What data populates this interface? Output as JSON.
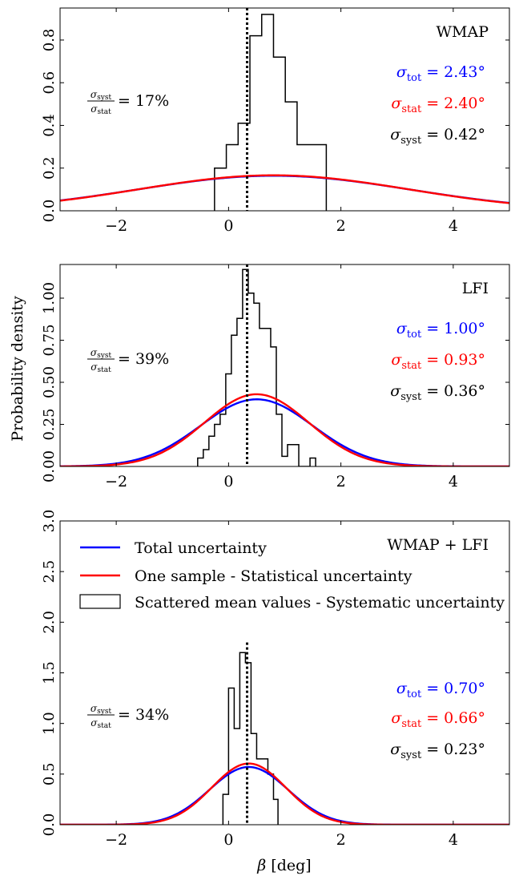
{
  "figure": {
    "ylabel": "Probability density",
    "xlabel": "β [deg]",
    "vline_beta": 0.33
  },
  "legend": {
    "total": "Total uncertainty",
    "stat": "One sample - Statistical uncertainty",
    "syst": "Scattered mean values - Systematic uncertainty"
  },
  "colors": {
    "total": "#0000ff",
    "stat": "#ff0000",
    "syst": "#000000"
  },
  "chart_data": [
    {
      "type": "area",
      "title": "WMAP",
      "xlim": [
        -3,
        5
      ],
      "ylim": [
        0,
        0.95
      ],
      "xticks": [
        -2,
        0,
        2,
        4
      ],
      "xtick_labels": [
        "−2",
        "0",
        "2",
        "4"
      ],
      "yticks": [
        0,
        0.2,
        0.4,
        0.6,
        0.8
      ],
      "ytick_labels": [
        "0.0",
        "0.2",
        "0.4",
        "0.6",
        "0.8"
      ],
      "mean": 0.8,
      "sigma_tot": 2.43,
      "sigma_stat": 2.4,
      "sigma_syst": 0.42,
      "labels": {
        "tot": "= 2.43°",
        "stat": "= 2.40°",
        "syst": "= 0.42°",
        "ratio": "= 17%"
      },
      "hist": {
        "edges": [
          -0.25,
          -0.04,
          0.17,
          0.38,
          0.59,
          0.8,
          1.01,
          1.22,
          1.43,
          1.64,
          1.74
        ],
        "heights": [
          0.2,
          0.31,
          0.41,
          0.82,
          0.92,
          0.72,
          0.51,
          0.31,
          0.31,
          0.31
        ]
      }
    },
    {
      "type": "area",
      "title": "LFI",
      "xlim": [
        -3,
        5
      ],
      "ylim": [
        0,
        1.2
      ],
      "xticks": [
        -2,
        0,
        2,
        4
      ],
      "xtick_labels": [
        "−2",
        "0",
        "2",
        "4"
      ],
      "yticks": [
        0,
        0.25,
        0.5,
        0.75,
        1.0
      ],
      "ytick_labels": [
        "0.00",
        "0.25",
        "0.50",
        "0.75",
        "1.00"
      ],
      "mean": 0.5,
      "sigma_tot": 1.0,
      "sigma_stat": 0.93,
      "sigma_syst": 0.36,
      "labels": {
        "tot": "= 1.00°",
        "stat": "= 0.93°",
        "syst": "= 0.36°",
        "ratio": "= 39%"
      },
      "hist": {
        "edges": [
          -0.55,
          -0.45,
          -0.35,
          -0.25,
          -0.15,
          -0.05,
          0.05,
          0.15,
          0.25,
          0.35,
          0.45,
          0.55,
          0.65,
          0.75,
          0.85,
          0.95,
          1.05,
          1.15,
          1.25,
          1.35,
          1.45,
          1.55
        ],
        "heights": [
          0.05,
          0.1,
          0.18,
          0.25,
          0.31,
          0.55,
          0.78,
          0.88,
          1.17,
          1.03,
          0.97,
          0.82,
          0.82,
          0.71,
          0.31,
          0.06,
          0.13,
          0.13,
          0.0,
          0.0,
          0.05
        ]
      }
    },
    {
      "type": "area",
      "title": "WMAP + LFI",
      "xlim": [
        -3,
        5
      ],
      "ylim": [
        0,
        3.0
      ],
      "xticks": [
        -2,
        0,
        2,
        4
      ],
      "xtick_labels": [
        "−2",
        "0",
        "2",
        "4"
      ],
      "yticks": [
        0,
        0.5,
        1.0,
        1.5,
        2.0,
        2.5,
        3.0
      ],
      "ytick_labels": [
        "0.0",
        "0.5",
        "1.0",
        "1.5",
        "2.0",
        "2.5",
        "3.0"
      ],
      "mean": 0.36,
      "sigma_tot": 0.7,
      "sigma_stat": 0.66,
      "sigma_syst": 0.23,
      "labels": {
        "tot": "= 0.70°",
        "stat": "= 0.66°",
        "syst": "= 0.23°",
        "ratio": "= 34%"
      },
      "hist": {
        "edges": [
          -0.1,
          0.0,
          0.1,
          0.2,
          0.3,
          0.4,
          0.5,
          0.6,
          0.7,
          0.8,
          0.88
        ],
        "heights": [
          0.3,
          1.35,
          0.95,
          1.7,
          1.6,
          0.9,
          0.65,
          0.65,
          0.5,
          0.25
        ]
      }
    }
  ]
}
